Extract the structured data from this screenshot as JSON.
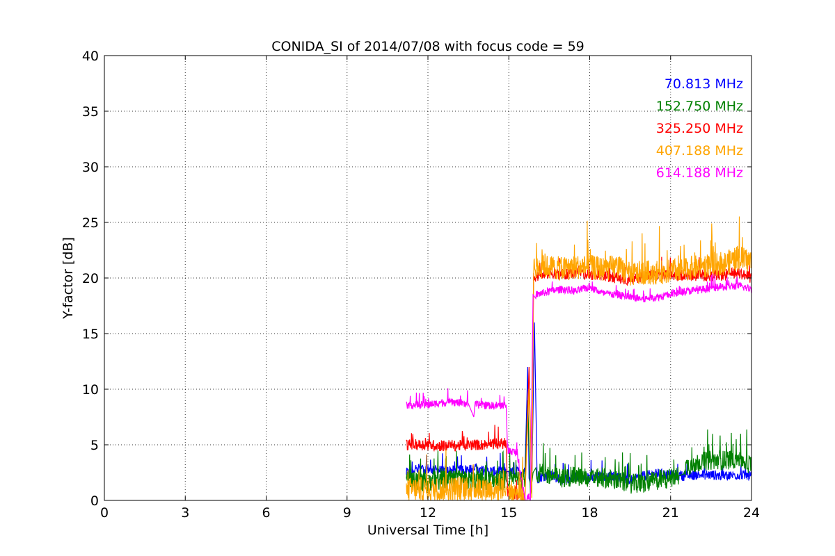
{
  "chart_data": {
    "type": "line",
    "title": "CONIDA_SI of 2014/07/08 with focus code = 59",
    "xlabel": "Universal Time [h]",
    "ylabel": "Y-factor [dB]",
    "xlim": [
      0,
      24
    ],
    "ylim": [
      0,
      40
    ],
    "xticks": [
      0,
      3,
      6,
      9,
      12,
      15,
      18,
      21,
      24
    ],
    "yticks": [
      0,
      5,
      10,
      15,
      20,
      25,
      30,
      35,
      40
    ],
    "xtick_labels": [
      "0",
      "3",
      "6",
      "9",
      "12",
      "15",
      "18",
      "21",
      "24"
    ],
    "ytick_labels": [
      "0",
      "5",
      "10",
      "15",
      "20",
      "25",
      "30",
      "35",
      "40"
    ],
    "grid": true,
    "legend_position": "top-right",
    "series": [
      {
        "name": "70.813 MHz",
        "color": "#0000ff",
        "points": [
          [
            11.2,
            2.5
          ],
          [
            11.5,
            2.5
          ],
          [
            11.55,
            3.0
          ],
          [
            12.0,
            2.8
          ],
          [
            12.5,
            2.7
          ],
          [
            13.0,
            2.7
          ],
          [
            13.5,
            2.8
          ],
          [
            14.0,
            2.7
          ],
          [
            14.5,
            2.6
          ],
          [
            14.9,
            2.6
          ],
          [
            15.0,
            2.5
          ],
          [
            15.3,
            2.6
          ],
          [
            15.6,
            2.6
          ],
          [
            15.7,
            12.0
          ],
          [
            15.75,
            2.0
          ],
          [
            15.85,
            1.0
          ],
          [
            15.95,
            16.0
          ],
          [
            16.05,
            2.0
          ],
          [
            16.5,
            2.3
          ],
          [
            17.0,
            1.8
          ],
          [
            17.5,
            2.2
          ],
          [
            18.0,
            2.0
          ],
          [
            18.5,
            2.2
          ],
          [
            19.0,
            2.2
          ],
          [
            19.5,
            1.8
          ],
          [
            20.0,
            2.2
          ],
          [
            20.5,
            2.4
          ],
          [
            21.0,
            2.3
          ],
          [
            21.5,
            2.2
          ],
          [
            22.0,
            2.3
          ],
          [
            22.5,
            2.3
          ],
          [
            23.0,
            2.2
          ],
          [
            23.5,
            2.3
          ],
          [
            24.0,
            2.2
          ]
        ],
        "noise": 0.45
      },
      {
        "name": "152.750 MHz",
        "color": "#008000",
        "points": [
          [
            11.2,
            1.7
          ],
          [
            12.0,
            1.7
          ],
          [
            12.5,
            1.8
          ],
          [
            13.0,
            1.8
          ],
          [
            13.5,
            1.8
          ],
          [
            14.0,
            1.8
          ],
          [
            14.5,
            1.8
          ],
          [
            14.9,
            1.8
          ],
          [
            15.0,
            1.7
          ],
          [
            15.3,
            1.8
          ],
          [
            15.6,
            2.0
          ],
          [
            15.7,
            9.0
          ],
          [
            15.8,
            0.5
          ],
          [
            15.9,
            2.5
          ],
          [
            16.0,
            2.5
          ],
          [
            16.5,
            2.3
          ],
          [
            17.0,
            2.0
          ],
          [
            17.5,
            2.2
          ],
          [
            18.0,
            2.0
          ],
          [
            18.5,
            2.0
          ],
          [
            19.0,
            1.8
          ],
          [
            19.5,
            1.5
          ],
          [
            20.0,
            1.5
          ],
          [
            20.5,
            1.8
          ],
          [
            21.0,
            2.0
          ],
          [
            21.3,
            2.2
          ],
          [
            21.5,
            3.0
          ],
          [
            22.0,
            3.4
          ],
          [
            22.5,
            3.6
          ],
          [
            23.0,
            3.6
          ],
          [
            23.5,
            3.8
          ],
          [
            24.0,
            3.2
          ]
        ],
        "noise": 0.9
      },
      {
        "name": "325.250 MHz",
        "color": "#ff0000",
        "points": [
          [
            11.2,
            5.0
          ],
          [
            12.0,
            5.0
          ],
          [
            12.5,
            4.9
          ],
          [
            13.0,
            4.9
          ],
          [
            13.5,
            5.0
          ],
          [
            14.0,
            5.0
          ],
          [
            14.5,
            5.1
          ],
          [
            14.9,
            5.1
          ],
          [
            14.95,
            0.8
          ],
          [
            15.3,
            0.5
          ],
          [
            15.6,
            0.4
          ],
          [
            15.75,
            12.0
          ],
          [
            15.85,
            0.3
          ],
          [
            15.92,
            20.0
          ],
          [
            16.5,
            20.5
          ],
          [
            17.0,
            20.3
          ],
          [
            17.5,
            20.5
          ],
          [
            18.0,
            20.3
          ],
          [
            18.5,
            20.2
          ],
          [
            19.0,
            20.0
          ],
          [
            19.5,
            19.8
          ],
          [
            20.0,
            20.2
          ],
          [
            20.5,
            20.3
          ],
          [
            21.0,
            20.2
          ],
          [
            21.5,
            20.3
          ],
          [
            22.0,
            20.2
          ],
          [
            22.5,
            20.2
          ],
          [
            23.0,
            20.3
          ],
          [
            23.5,
            20.5
          ],
          [
            24.0,
            20.0
          ]
        ],
        "noise": 0.5
      },
      {
        "name": "407.188 MHz",
        "color": "#ffa500",
        "points": [
          [
            11.2,
            1.0
          ],
          [
            12.0,
            1.0
          ],
          [
            12.5,
            1.0
          ],
          [
            13.0,
            1.1
          ],
          [
            13.5,
            1.0
          ],
          [
            14.0,
            1.1
          ],
          [
            14.5,
            1.0
          ],
          [
            14.9,
            1.0
          ],
          [
            15.0,
            0.8
          ],
          [
            15.3,
            0.6
          ],
          [
            15.6,
            0.4
          ],
          [
            15.75,
            10.0
          ],
          [
            15.85,
            0.2
          ],
          [
            15.92,
            21.0
          ],
          [
            16.5,
            21.0
          ],
          [
            17.0,
            20.8
          ],
          [
            17.5,
            21.0
          ],
          [
            18.0,
            21.0
          ],
          [
            18.5,
            20.8
          ],
          [
            19.0,
            21.0
          ],
          [
            19.5,
            20.3
          ],
          [
            20.0,
            20.5
          ],
          [
            20.5,
            20.5
          ],
          [
            21.0,
            20.6
          ],
          [
            21.5,
            20.8
          ],
          [
            22.0,
            21.0
          ],
          [
            22.5,
            21.2
          ],
          [
            23.0,
            21.3
          ],
          [
            23.5,
            21.8
          ],
          [
            24.0,
            21.5
          ]
        ],
        "noise": 1.1
      },
      {
        "name": "614.188 MHz",
        "color": "#ff00ff",
        "points": [
          [
            11.2,
            8.6
          ],
          [
            12.0,
            8.6
          ],
          [
            12.5,
            8.8
          ],
          [
            13.0,
            8.8
          ],
          [
            13.5,
            8.7
          ],
          [
            13.7,
            7.5
          ],
          [
            13.75,
            8.6
          ],
          [
            14.0,
            8.6
          ],
          [
            14.5,
            8.5
          ],
          [
            14.9,
            8.6
          ],
          [
            14.95,
            4.5
          ],
          [
            15.3,
            4.3
          ],
          [
            15.6,
            0.2
          ],
          [
            15.8,
            0.0
          ],
          [
            15.9,
            18.5
          ],
          [
            16.0,
            18.5
          ],
          [
            16.5,
            18.8
          ],
          [
            17.0,
            19.0
          ],
          [
            17.5,
            18.8
          ],
          [
            18.0,
            19.2
          ],
          [
            18.5,
            18.6
          ],
          [
            19.0,
            18.5
          ],
          [
            19.5,
            18.3
          ],
          [
            20.0,
            18.1
          ],
          [
            20.5,
            18.3
          ],
          [
            21.0,
            18.5
          ],
          [
            21.5,
            18.8
          ],
          [
            22.0,
            18.9
          ],
          [
            22.5,
            19.1
          ],
          [
            23.0,
            19.2
          ],
          [
            23.5,
            19.3
          ],
          [
            24.0,
            19.0
          ]
        ],
        "noise": 0.35
      }
    ]
  }
}
